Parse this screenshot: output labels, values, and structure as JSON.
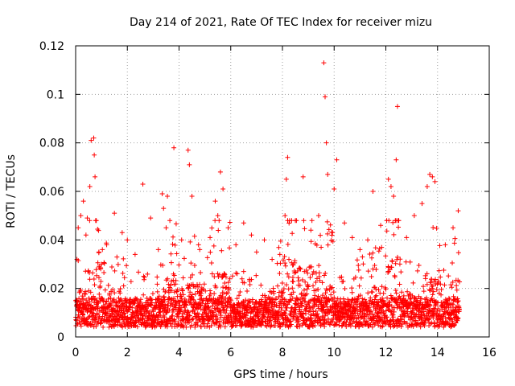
{
  "chart_data": {
    "type": "scatter",
    "title": "Day 214 of 2021, Rate Of TEC Index for receiver mizu",
    "xlabel": "GPS time / hours",
    "ylabel": "ROTI / TECUs",
    "xlim": [
      0,
      16
    ],
    "ylim": [
      0,
      0.12
    ],
    "xticks": [
      0,
      2,
      4,
      6,
      8,
      10,
      12,
      14,
      16
    ],
    "xtick_labels": [
      "0",
      "2",
      "4",
      "6",
      "8",
      "10",
      "12",
      "14",
      "16"
    ],
    "yticks": [
      0,
      0.02,
      0.04,
      0.06,
      0.08,
      0.1,
      0.12
    ],
    "ytick_labels": [
      "0",
      "0.02",
      "0.04",
      "0.06",
      "0.08",
      "0.1",
      "0.12"
    ],
    "grid": true,
    "marker": "+",
    "color": "#ff0000",
    "series": [
      {
        "name": "ROTI",
        "x": [
          0.05,
          0.1,
          0.2,
          0.3,
          0.4,
          0.45,
          0.55,
          0.6,
          0.7,
          0.72,
          0.75,
          0.8,
          0.9,
          1.0,
          1.2,
          1.5,
          1.8,
          2.0,
          2.3,
          2.6,
          2.9,
          3.2,
          3.35,
          3.4,
          3.5,
          3.55,
          3.8,
          4.1,
          4.35,
          4.4,
          4.5,
          4.8,
          5.2,
          5.4,
          5.5,
          5.6,
          5.7,
          5.9,
          6.2,
          6.5,
          6.8,
          7.0,
          7.3,
          7.6,
          7.9,
          8.1,
          8.15,
          8.2,
          8.5,
          8.8,
          9.1,
          9.4,
          9.6,
          9.65,
          9.7,
          9.75,
          10.0,
          10.1,
          10.4,
          10.7,
          11.0,
          11.3,
          11.5,
          11.8,
          12.1,
          12.2,
          12.3,
          12.4,
          12.45,
          12.8,
          13.1,
          13.4,
          13.6,
          13.7,
          13.8,
          13.9,
          14.3,
          14.6,
          14.8
        ],
        "y": [
          0.032,
          0.045,
          0.05,
          0.056,
          0.042,
          0.049,
          0.062,
          0.081,
          0.082,
          0.075,
          0.066,
          0.048,
          0.035,
          0.03,
          0.038,
          0.051,
          0.043,
          0.04,
          0.034,
          0.063,
          0.049,
          0.036,
          0.059,
          0.053,
          0.045,
          0.058,
          0.078,
          0.04,
          0.077,
          0.071,
          0.058,
          0.036,
          0.041,
          0.056,
          0.05,
          0.068,
          0.061,
          0.045,
          0.038,
          0.047,
          0.042,
          0.035,
          0.04,
          0.032,
          0.034,
          0.05,
          0.065,
          0.074,
          0.048,
          0.066,
          0.044,
          0.05,
          0.113,
          0.099,
          0.08,
          0.067,
          0.061,
          0.073,
          0.047,
          0.041,
          0.036,
          0.04,
          0.06,
          0.046,
          0.065,
          0.062,
          0.058,
          0.073,
          0.095,
          0.041,
          0.05,
          0.055,
          0.062,
          0.067,
          0.066,
          0.064,
          0.038,
          0.045,
          0.052
        ]
      }
    ]
  }
}
